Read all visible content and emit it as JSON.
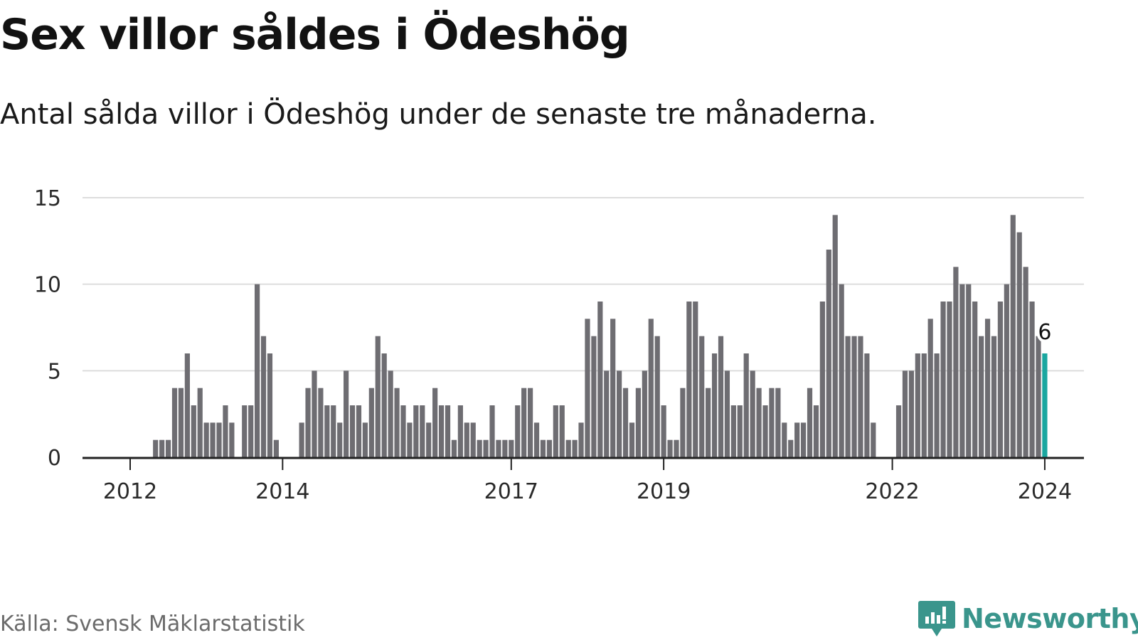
{
  "title": "Sex villor såldes i Ödeshög",
  "subtitle": "Antal sålda villor i Ödeshög under de senaste tre månaderna.",
  "source": "Källa: Svensk Mäklarstatistik",
  "logo": {
    "text": "Newsworthy",
    "icon": "bar-chart-speech-bubble-icon"
  },
  "colors": {
    "bar": "#6e6d72",
    "highlight": "#1aa7a0",
    "grid": "#dddddd",
    "axis": "#222222",
    "brand": "#3a958c"
  },
  "chart_data": {
    "type": "bar",
    "title": "Sex villor såldes i Ödeshög",
    "xlabel": "",
    "ylabel": "",
    "ylim": [
      0,
      15
    ],
    "yticks": [
      0,
      5,
      10,
      15
    ],
    "xticks": [
      {
        "label": "2012",
        "index": 0
      },
      {
        "label": "2014",
        "index": 24
      },
      {
        "label": "2017",
        "index": 60
      },
      {
        "label": "2019",
        "index": 84
      },
      {
        "label": "2022",
        "index": 120
      },
      {
        "label": "2024",
        "index": 144
      }
    ],
    "grid": true,
    "start": "2012-01",
    "values": [
      0,
      0,
      0,
      0,
      1,
      1,
      1,
      4,
      4,
      6,
      3,
      4,
      2,
      2,
      2,
      3,
      2,
      0,
      3,
      3,
      10,
      7,
      6,
      1,
      0,
      0,
      0,
      2,
      4,
      5,
      4,
      3,
      3,
      2,
      5,
      3,
      3,
      2,
      4,
      7,
      6,
      5,
      4,
      3,
      2,
      3,
      3,
      2,
      4,
      3,
      3,
      1,
      3,
      2,
      2,
      1,
      1,
      3,
      1,
      1,
      1,
      3,
      4,
      4,
      2,
      1,
      1,
      3,
      3,
      1,
      1,
      2,
      8,
      7,
      9,
      5,
      8,
      5,
      4,
      2,
      4,
      5,
      8,
      7,
      3,
      1,
      1,
      4,
      9,
      9,
      7,
      4,
      6,
      7,
      5,
      3,
      3,
      6,
      5,
      4,
      3,
      4,
      4,
      2,
      1,
      2,
      2,
      4,
      3,
      9,
      12,
      14,
      10,
      7,
      7,
      7,
      6,
      2,
      0,
      0,
      0,
      3,
      5,
      5,
      6,
      6,
      8,
      6,
      9,
      9,
      11,
      10,
      10,
      9,
      7,
      8,
      7,
      9,
      10,
      14,
      13,
      11,
      9,
      7,
      6
    ],
    "highlight": {
      "index": 144,
      "label": "6"
    }
  }
}
